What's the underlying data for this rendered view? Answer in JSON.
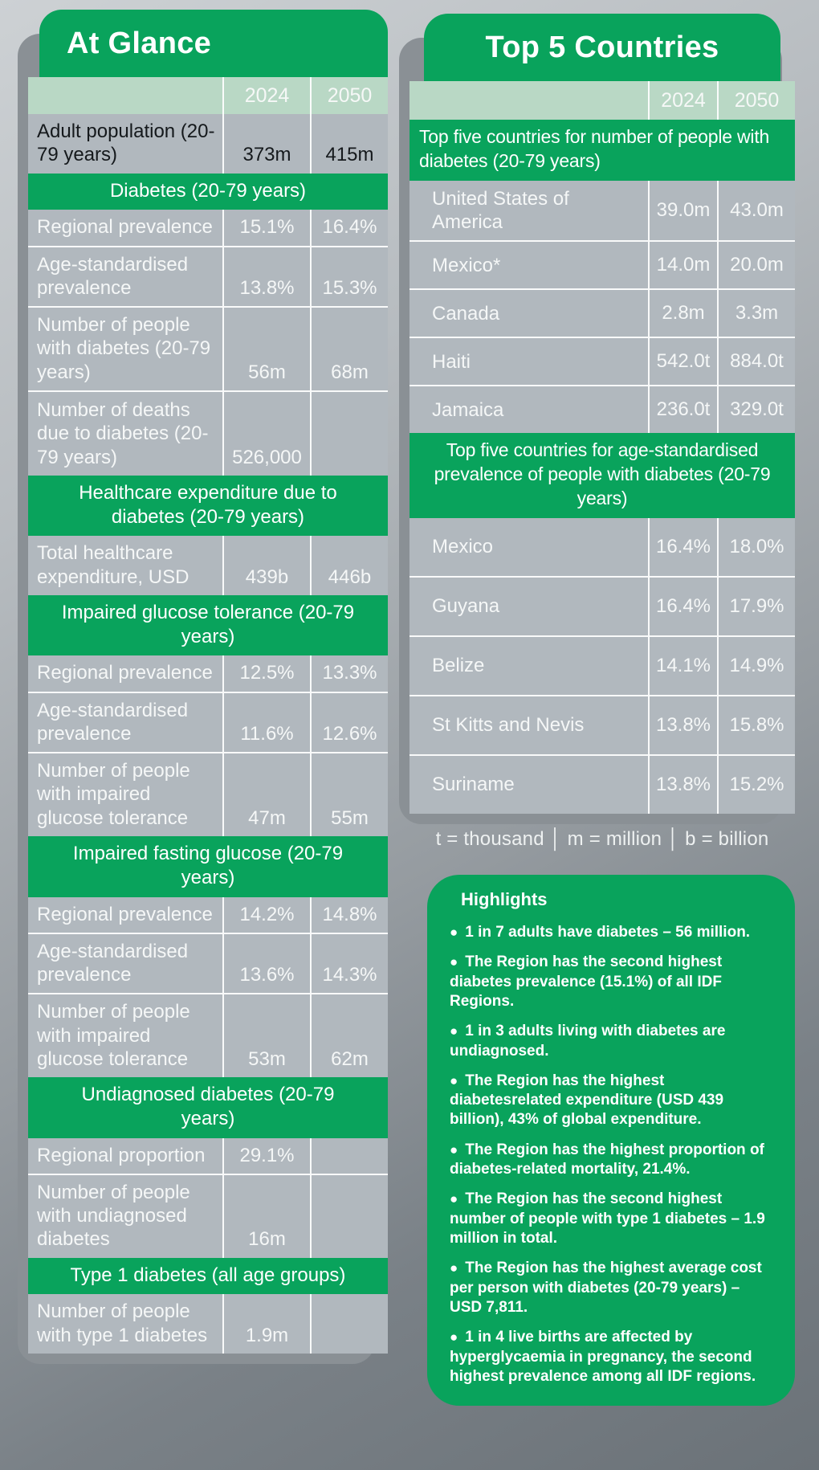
{
  "colors": {
    "accent_green": "#09a35c",
    "light_green": "#b9d8c5",
    "row_gray": "#b1b8be",
    "backing_gray": "#8a9095"
  },
  "at_glance": {
    "title": "At Glance",
    "columns": [
      "2024",
      "2050"
    ],
    "rows": [
      {
        "type": "data",
        "cls": "dark",
        "label": "Adult population (20-79 years)",
        "v2024": "373m",
        "v2050": "415m"
      },
      {
        "type": "section",
        "label": "Diabetes (20-79 years)"
      },
      {
        "type": "data",
        "label": "Regional prevalence",
        "v2024": "15.1%",
        "v2050": "16.4%"
      },
      {
        "type": "data",
        "label": "Age-standardised prevalence",
        "v2024": "13.8%",
        "v2050": "15.3%"
      },
      {
        "type": "data",
        "label": "Number of people with diabetes (20-79 years)",
        "v2024": "56m",
        "v2050": "68m"
      },
      {
        "type": "data",
        "cls": "tall",
        "label": "Number of deaths due to diabetes (20-79 years)",
        "v2024": "526,000",
        "v2050": ""
      },
      {
        "type": "section",
        "label": "Healthcare expenditure due to diabetes (20-79 years)"
      },
      {
        "type": "data",
        "label": "Total healthcare expenditure, USD",
        "v2024": "439b",
        "v2050": "446b"
      },
      {
        "type": "section",
        "label": "Impaired glucose tolerance (20-79 years)"
      },
      {
        "type": "data",
        "label": "Regional prevalence",
        "v2024": "12.5%",
        "v2050": "13.3%"
      },
      {
        "type": "data",
        "label": "Age-standardised prevalence",
        "v2024": "11.6%",
        "v2050": "12.6%"
      },
      {
        "type": "data",
        "label": "Number of people with impaired glucose tolerance",
        "v2024": "47m",
        "v2050": "55m"
      },
      {
        "type": "section",
        "label": "Impaired fasting glucose (20-79 years)"
      },
      {
        "type": "data",
        "label": "Regional prevalence",
        "v2024": "14.2%",
        "v2050": "14.8%"
      },
      {
        "type": "data",
        "label": "Age-standardised prevalence",
        "v2024": "13.6%",
        "v2050": "14.3%"
      },
      {
        "type": "data",
        "label": "Number of people with impaired glucose tolerance",
        "v2024": "53m",
        "v2050": "62m"
      },
      {
        "type": "section",
        "label": "Undiagnosed diabetes (20-79 years)"
      },
      {
        "type": "data",
        "label": "Regional proportion",
        "v2024": "29.1%",
        "v2050": ""
      },
      {
        "type": "data",
        "label": "Number of people with undiagnosed diabetes",
        "v2024": "16m",
        "v2050": ""
      },
      {
        "type": "section",
        "label": "Type 1 diabetes (all age groups)"
      },
      {
        "type": "data",
        "label": "Number of people with type 1 diabetes",
        "v2024": "1.9m",
        "v2050": ""
      }
    ]
  },
  "top5": {
    "title": "Top 5 Countries",
    "columns": [
      "2024",
      "2050"
    ],
    "banner_number": "Top five countries for number of people with diabetes (20-79 years)",
    "number_rows": [
      {
        "name": "United States of America",
        "v2024": "39.0m",
        "v2050": "43.0m"
      },
      {
        "name": "Mexico*",
        "v2024": "14.0m",
        "v2050": "20.0m"
      },
      {
        "name": "Canada",
        "v2024": "2.8m",
        "v2050": "3.3m"
      },
      {
        "name": "Haiti",
        "v2024": "542.0t",
        "v2050": "884.0t"
      },
      {
        "name": "Jamaica",
        "v2024": "236.0t",
        "v2050": "329.0t"
      }
    ],
    "banner_prevalence": "Top five countries for age-standardised prevalence of people with diabetes (20-79 years)",
    "prevalence_rows": [
      {
        "name": "Mexico",
        "v2024": "16.4%",
        "v2050": "18.0%"
      },
      {
        "name": "Guyana",
        "v2024": "16.4%",
        "v2050": "17.9%"
      },
      {
        "name": "Belize",
        "v2024": "14.1%",
        "v2050": "14.9%"
      },
      {
        "name": "St Kitts and Nevis",
        "v2024": "13.8%",
        "v2050": "15.8%"
      },
      {
        "name": "Suriname",
        "v2024": "13.8%",
        "v2050": "15.2%"
      }
    ]
  },
  "legend": "t = thousand │ m = million │ b = billion",
  "highlights": {
    "title": "Highlights",
    "items": [
      {
        "text": "1 in 7 adults have diabetes – 56 million."
      },
      {
        "text": "The Region has the second highest diabetes prevalence (15.1%) of all IDF Regions."
      },
      {
        "text": "1 in 3 adults living with diabetes are undiagnosed."
      },
      {
        "text": "The Region has the highest diabetesrelated expenditure (USD 439 billion), 43% of global expenditure."
      },
      {
        "text": "The Region has the highest proportion of diabetes-related mortality, 21.4%."
      },
      {
        "text": "The Region has the second highest number of people with type 1 diabetes – 1.9 million in total."
      },
      {
        "text": "The Region has the highest average cost per person with diabetes (20-79 years) – USD 7,811."
      },
      {
        "text": "1 in 4 live births are affected by hyperglycaemia in pregnancy, the second highest prevalence among all IDF regions."
      }
    ]
  }
}
